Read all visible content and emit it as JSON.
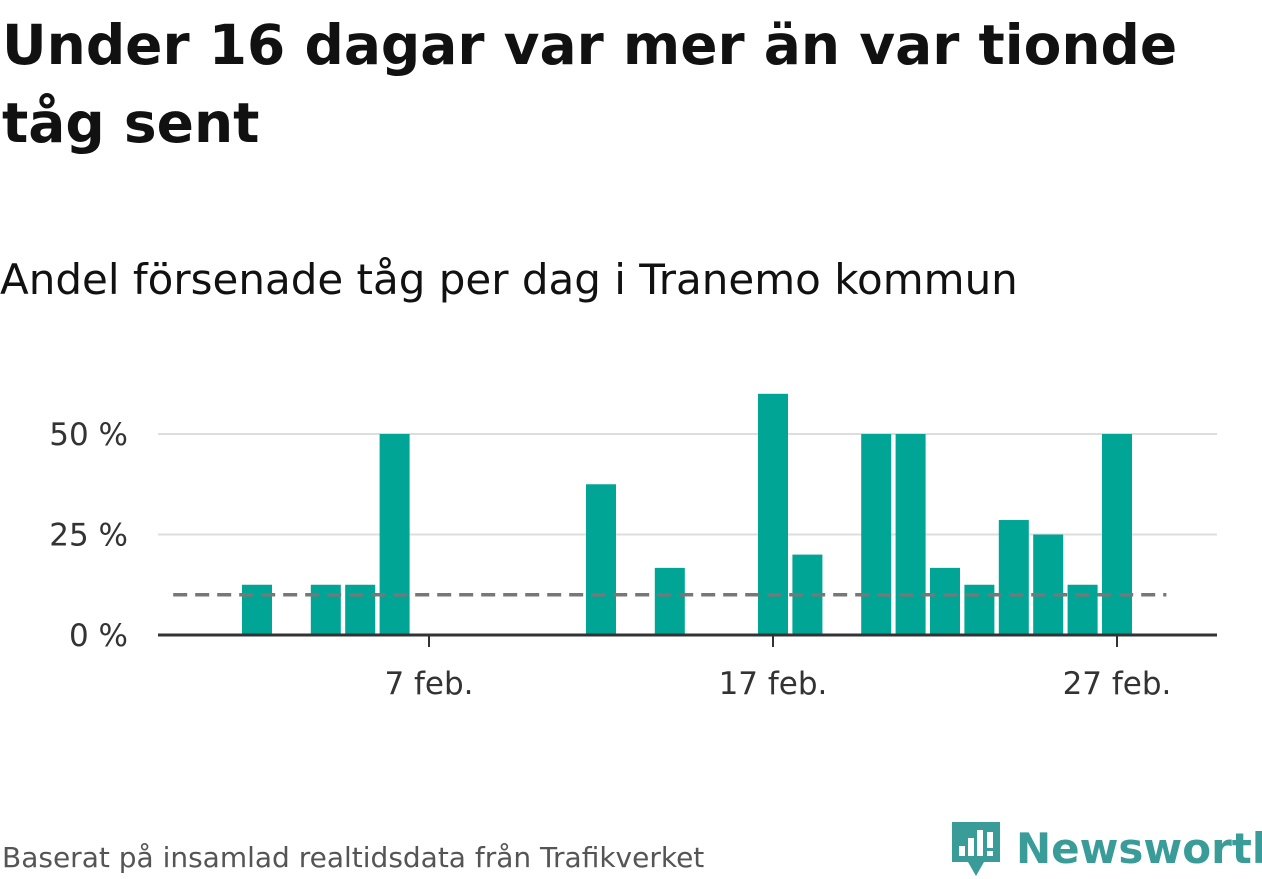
{
  "title": "Under 16 dagar var mer än var tionde tåg sent",
  "subtitle": "Andel försenade tåg per dag i Tranemo kommun",
  "footer": {
    "source": "Baserat på insamlad realtidsdata från Trafikverket",
    "brand": "Newsworthy"
  },
  "colors": {
    "bar": "#00a596",
    "reference_line": "#777777",
    "grid": "#dddddd",
    "axis": "#333333",
    "brand": "#3a9c98"
  },
  "chart_data": {
    "type": "bar",
    "x_unit": "day",
    "x": [
      "2 feb.",
      "3 feb.",
      "4 feb.",
      "5 feb.",
      "6 feb.",
      "7 feb.",
      "8 feb.",
      "9 feb.",
      "10 feb.",
      "11 feb.",
      "12 feb.",
      "13 feb.",
      "14 feb.",
      "15 feb.",
      "16 feb.",
      "17 feb.",
      "18 feb.",
      "19 feb.",
      "20 feb.",
      "21 feb.",
      "22 feb.",
      "23 feb.",
      "24 feb.",
      "25 feb.",
      "26 feb.",
      "27 feb.",
      "28 feb."
    ],
    "values": [
      12.5,
      0,
      12.5,
      12.5,
      50,
      0,
      0,
      0,
      0,
      0,
      37.5,
      0,
      16.7,
      0,
      0,
      60,
      20,
      0,
      50,
      50,
      16.7,
      12.5,
      28.6,
      25,
      12.5,
      50,
      null
    ],
    "reference_value": 10,
    "reference_span": [
      "31 jan.",
      "28 feb."
    ],
    "y_ticks": [
      0,
      25,
      50
    ],
    "y_tick_labels": [
      "0 %",
      "25 %",
      "50 %"
    ],
    "x_ticks": [
      "7 feb.",
      "17 feb.",
      "27 feb."
    ],
    "ylim": [
      0,
      62
    ],
    "xlim": [
      "31 jan.",
      "3 mar."
    ],
    "grid": true
  }
}
